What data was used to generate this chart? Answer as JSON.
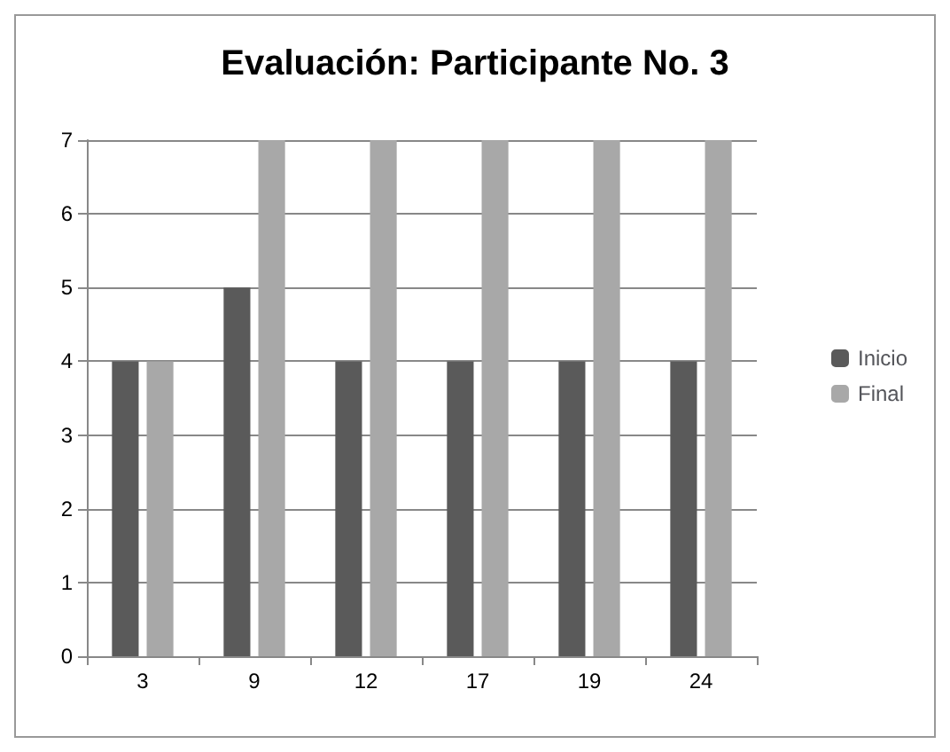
{
  "chart_data": {
    "type": "bar",
    "title": "Evaluación: Participante No. 3",
    "categories": [
      "3",
      "9",
      "12",
      "17",
      "19",
      "24"
    ],
    "series": [
      {
        "name": "Inicio",
        "color": "#5a5a5a",
        "values": [
          4,
          5,
          4,
          4,
          4,
          4
        ]
      },
      {
        "name": "Final",
        "color": "#a8a8a8",
        "values": [
          4,
          7,
          7,
          7,
          7,
          7
        ]
      }
    ],
    "ylim": [
      0,
      7
    ],
    "yticks": [
      0,
      1,
      2,
      3,
      4,
      5,
      6,
      7
    ],
    "grid": "y",
    "legend": "right"
  }
}
